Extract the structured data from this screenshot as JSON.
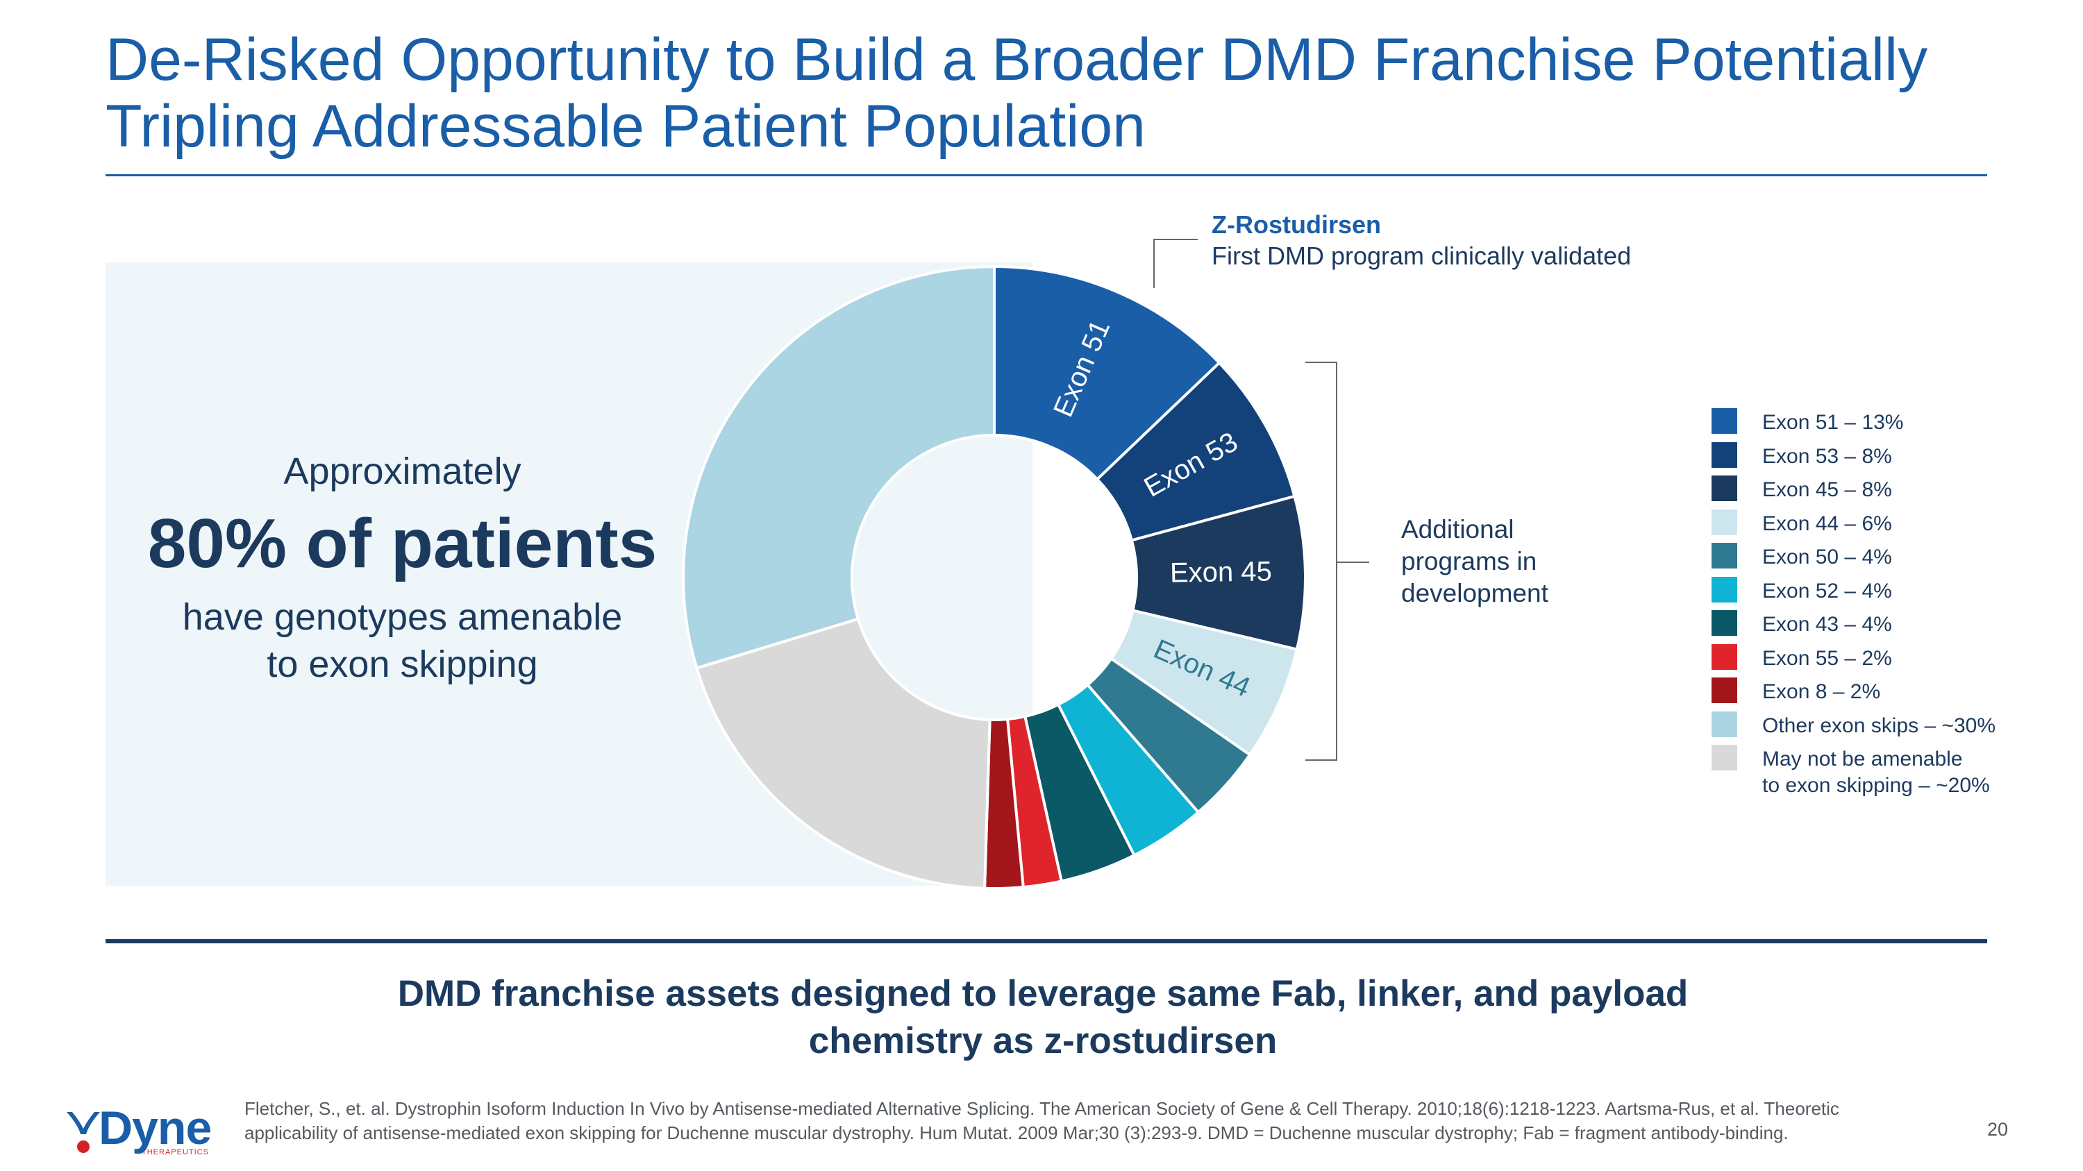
{
  "title": "De-Risked Opportunity to Build a Broader DMD Franchise Potentially Tripling Addressable Patient Population",
  "stat": {
    "lead": "Approximately",
    "headline": "80% of patients",
    "sub_line1": "have genotypes amenable",
    "sub_line2": "to exon skipping"
  },
  "callout": {
    "title": "Z-Rostudirsen",
    "subtitle": "First DMD program clinically validated"
  },
  "additional": {
    "line1": "Additional",
    "line2": "programs in",
    "line3": "development"
  },
  "chart_data": {
    "type": "pie",
    "variant": "donut",
    "title": "",
    "slices": [
      {
        "name": "Exon 51",
        "legend": "Exon 51 – 13%",
        "value": 13,
        "color": "#1a5ea8",
        "label": "Exon 51",
        "label_color": "#ffffff"
      },
      {
        "name": "Exon 53",
        "legend": "Exon 53 – 8%",
        "value": 8,
        "color": "#13427a",
        "label": "Exon 53",
        "label_color": "#ffffff"
      },
      {
        "name": "Exon 45",
        "legend": "Exon 45 – 8%",
        "value": 8,
        "color": "#1c3a5e",
        "label": "Exon 45",
        "label_color": "#ffffff"
      },
      {
        "name": "Exon 44",
        "legend": "Exon 44 – 6%",
        "value": 6,
        "color": "#cde6ee",
        "label": "Exon 44",
        "label_color": "#2f7a91"
      },
      {
        "name": "Exon 50",
        "legend": "Exon 50 – 4%",
        "value": 4,
        "color": "#2f7a91",
        "label": "",
        "label_color": ""
      },
      {
        "name": "Exon 52",
        "legend": "Exon 52 – 4%",
        "value": 4,
        "color": "#0fb3d4",
        "label": "",
        "label_color": ""
      },
      {
        "name": "Exon 43",
        "legend": "Exon 43 – 4%",
        "value": 4,
        "color": "#0b5866",
        "label": "",
        "label_color": ""
      },
      {
        "name": "Exon 55",
        "legend": "Exon 55 – 2%",
        "value": 2,
        "color": "#e0242b",
        "label": "",
        "label_color": ""
      },
      {
        "name": "Exon 8",
        "legend": "Exon 8 – 2%",
        "value": 2,
        "color": "#a3161b",
        "label": "",
        "label_color": ""
      },
      {
        "name": "May not be amenable to exon skipping",
        "legend_line1": "May not be amenable",
        "legend_line2": "to exon skipping – ~20%",
        "value": 20,
        "color": "#d9d9d9",
        "label": "",
        "label_color": ""
      },
      {
        "name": "Other exon skips",
        "legend": "Other exon skips – ~30%",
        "value": 30,
        "color": "#acd5e3",
        "label": "",
        "label_color": ""
      }
    ]
  },
  "tagline": {
    "line1": "DMD franchise assets designed to leverage same Fab, linker, and payload",
    "line2": "chemistry as z-rostudirsen"
  },
  "footnote": "Fletcher, S., et. al. Dystrophin Isoform Induction In Vivo by Antisense-mediated Alternative Splicing. The American Society of Gene & Cell Therapy. 2010;18(6):1218-1223. Aartsma-Rus, et al. Theoretic applicability of antisense-mediated exon skipping for Duchenne muscular dystrophy. Hum Mutat. 2009 Mar;30 (3):293-9. DMD = Duchenne muscular dystrophy; Fab = fragment antibody-binding.",
  "page_number": "20",
  "logo": {
    "word": "Dyne",
    "sub": "THERAPEUTICS",
    "accent": "#d62027",
    "brand": "#1a5ea8"
  }
}
